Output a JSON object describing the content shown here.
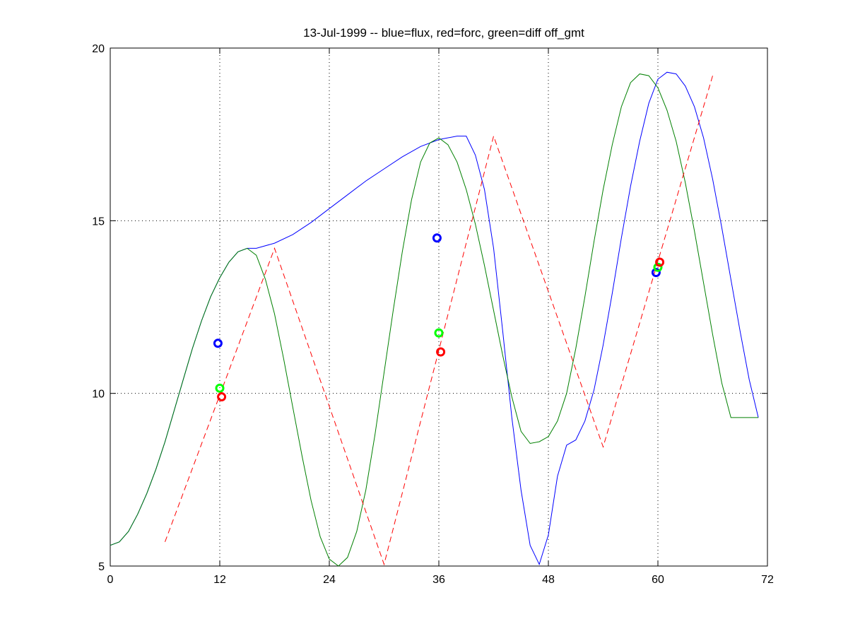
{
  "chart_data": {
    "type": "line",
    "title": "13-Jul-1999 -- blue=flux, red=forc, green=diff off_gmt",
    "xlabel": "",
    "ylabel": "",
    "xlim": [
      0,
      72
    ],
    "ylim": [
      5,
      20
    ],
    "xticks": [
      0,
      12,
      24,
      36,
      48,
      60,
      72
    ],
    "yticks": [
      5,
      10,
      15,
      20
    ],
    "xtick_labels": [
      "0",
      "12",
      "24",
      "36",
      "48",
      "60",
      "72"
    ],
    "ytick_labels": [
      "5",
      "10",
      "15",
      "20"
    ],
    "grid": {
      "vertical_dotted_at": [
        12,
        24,
        36,
        48,
        60
      ],
      "horizontal_dotted_at": [
        10,
        15
      ]
    },
    "series": [
      {
        "color": "#0000ff",
        "style": "solid",
        "x": [
          0,
          1,
          2,
          3,
          4,
          5,
          6,
          7,
          8,
          9,
          10,
          11,
          12,
          13,
          14,
          15,
          16,
          18,
          20,
          22,
          24,
          26,
          28,
          30,
          32,
          34,
          36,
          38,
          39,
          40,
          41,
          42,
          43,
          44,
          45,
          46,
          47,
          48,
          49,
          50,
          51,
          52,
          53,
          54,
          55,
          56,
          57,
          58,
          59,
          60,
          61,
          62,
          63,
          64,
          65,
          66,
          67,
          68,
          69,
          70,
          71
        ],
        "y": [
          5.6,
          5.7,
          6.0,
          6.5,
          7.1,
          7.8,
          8.6,
          9.5,
          10.4,
          11.3,
          12.1,
          12.8,
          13.35,
          13.8,
          14.1,
          14.2,
          14.2,
          14.35,
          14.6,
          14.95,
          15.35,
          15.75,
          16.15,
          16.5,
          16.85,
          17.15,
          17.35,
          17.45,
          17.45,
          16.9,
          15.9,
          14.2,
          11.8,
          9.3,
          7.2,
          5.6,
          5.05,
          5.9,
          7.6,
          8.5,
          8.65,
          9.2,
          10.1,
          11.4,
          12.9,
          14.5,
          16.0,
          17.3,
          18.4,
          19.1,
          19.3,
          19.25,
          18.9,
          18.3,
          17.4,
          16.2,
          14.8,
          13.3,
          11.8,
          10.4,
          9.3
        ]
      },
      {
        "color": "#008000",
        "style": "solid",
        "x": [
          0,
          1,
          2,
          3,
          4,
          5,
          6,
          7,
          8,
          9,
          10,
          11,
          12,
          13,
          14,
          15,
          16,
          17,
          18,
          19,
          20,
          21,
          22,
          23,
          24,
          25,
          26,
          27,
          28,
          29,
          30,
          31,
          32,
          33,
          34,
          35,
          36,
          37,
          38,
          39,
          40,
          41,
          42,
          43,
          44,
          45,
          46,
          47,
          48,
          49,
          50,
          51,
          52,
          53,
          54,
          55,
          56,
          57,
          58,
          59,
          60,
          61,
          62,
          63,
          64,
          65,
          66,
          67,
          68,
          69,
          70,
          71
        ],
        "y": [
          5.6,
          5.7,
          6.0,
          6.5,
          7.1,
          7.8,
          8.6,
          9.5,
          10.4,
          11.3,
          12.1,
          12.8,
          13.35,
          13.8,
          14.1,
          14.2,
          14.0,
          13.3,
          12.3,
          11.0,
          9.6,
          8.2,
          6.9,
          5.85,
          5.2,
          5.0,
          5.25,
          6.0,
          7.2,
          8.8,
          10.6,
          12.4,
          14.1,
          15.6,
          16.7,
          17.25,
          17.4,
          17.2,
          16.7,
          15.9,
          14.9,
          13.7,
          12.4,
          11.1,
          9.9,
          8.9,
          8.55,
          8.6,
          8.75,
          9.2,
          10.0,
          11.3,
          12.8,
          14.4,
          15.9,
          17.2,
          18.3,
          19.0,
          19.25,
          19.2,
          18.85,
          18.2,
          17.3,
          16.1,
          14.7,
          13.2,
          11.7,
          10.3,
          9.3,
          9.3,
          9.3,
          9.3
        ]
      },
      {
        "color": "#ff0000",
        "style": "dashed",
        "x": [
          6,
          18,
          30,
          42,
          54,
          66
        ],
        "y": [
          5.7,
          14.2,
          5.05,
          17.45,
          8.45,
          19.2
        ]
      }
    ],
    "markers": [
      {
        "color": "#0000ff",
        "x": 11.8,
        "y": 11.45
      },
      {
        "color": "#00ff00",
        "x": 12.0,
        "y": 10.15
      },
      {
        "color": "#ff0000",
        "x": 12.2,
        "y": 9.9
      },
      {
        "color": "#0000ff",
        "x": 35.8,
        "y": 14.5
      },
      {
        "color": "#00ff00",
        "x": 36.0,
        "y": 11.75
      },
      {
        "color": "#ff0000",
        "x": 36.2,
        "y": 11.2
      },
      {
        "color": "#0000ff",
        "x": 59.8,
        "y": 13.5
      },
      {
        "color": "#00ff00",
        "x": 60.0,
        "y": 13.65
      },
      {
        "color": "#ff0000",
        "x": 60.2,
        "y": 13.8
      }
    ]
  }
}
